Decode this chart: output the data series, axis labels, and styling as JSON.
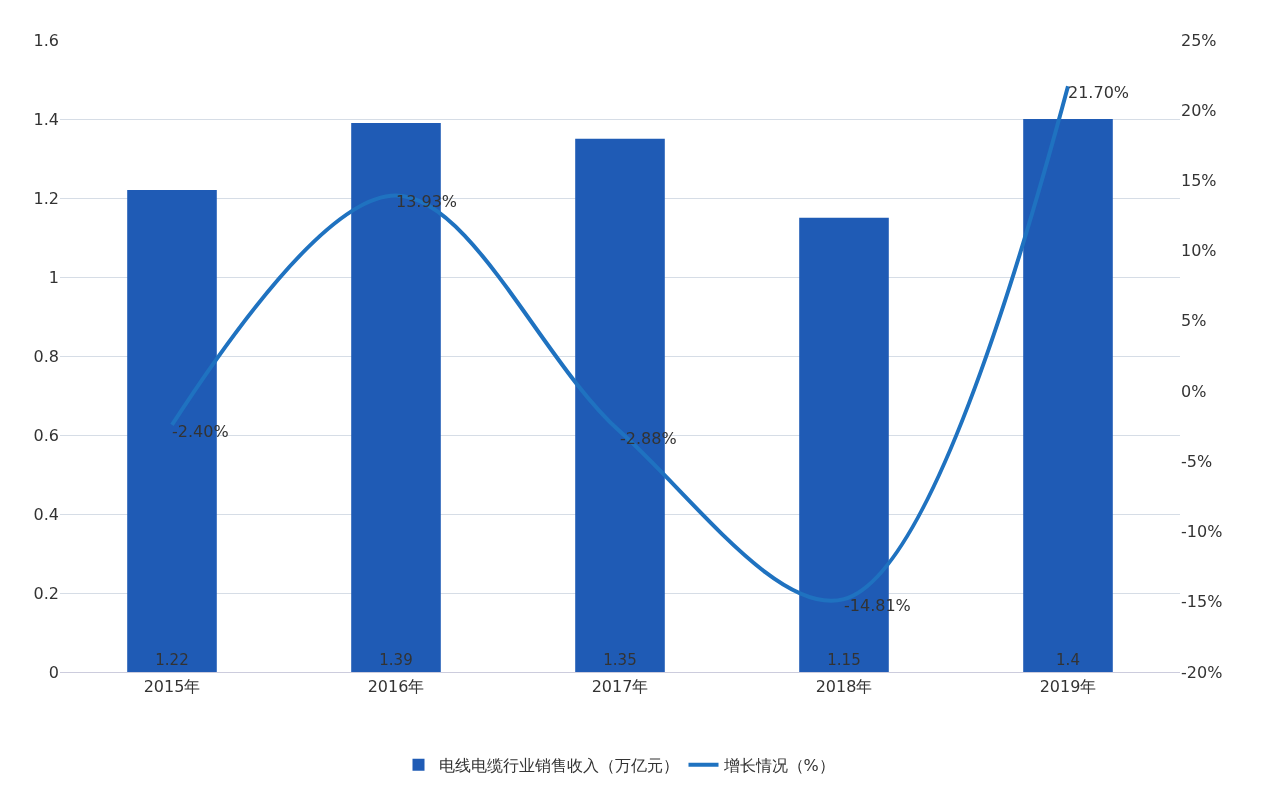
{
  "chart_data": {
    "type": "bar",
    "categories": [
      "2015年",
      "2016年",
      "2017年",
      "2018年",
      "2019年"
    ],
    "series": [
      {
        "name": "电线电缆行业销售收入（万亿元）",
        "color": "#1f5bb5",
        "values": [
          1.22,
          1.39,
          1.35,
          1.15,
          1.4
        ],
        "value_labels": [
          "1.22",
          "1.39",
          "1.35",
          "1.15",
          "1.4"
        ]
      },
      {
        "name": "增长情况（%）",
        "type": "line",
        "axis": "y2",
        "color": "#1f72c0",
        "values": [
          -2.4,
          13.93,
          -2.88,
          -14.81,
          21.7
        ],
        "value_labels": [
          "-2.40%",
          "13.93%",
          "-2.88%",
          "-14.81%",
          "21.70%"
        ]
      }
    ],
    "ylim": [
      0,
      1.6
    ],
    "yticks": [
      0,
      0.2,
      0.4,
      0.6,
      0.8,
      1,
      1.2,
      1.4,
      1.6
    ],
    "y2lim": [
      -20,
      25
    ],
    "y2ticks": [
      {
        "value": -20,
        "label": "-20%"
      },
      {
        "value": -15,
        "label": "-15%"
      },
      {
        "value": -10,
        "label": "-10%"
      },
      {
        "value": -5,
        "label": "-5%"
      },
      {
        "value": 0,
        "label": "0%"
      },
      {
        "value": 5,
        "label": "5%"
      },
      {
        "value": 10,
        "label": "10%"
      },
      {
        "value": 15,
        "label": "15%"
      },
      {
        "value": 20,
        "label": "20%"
      },
      {
        "value": 25,
        "label": "25%"
      }
    ],
    "grid": "y",
    "legend": "bottom",
    "marker": "none",
    "line_style": "solid"
  }
}
